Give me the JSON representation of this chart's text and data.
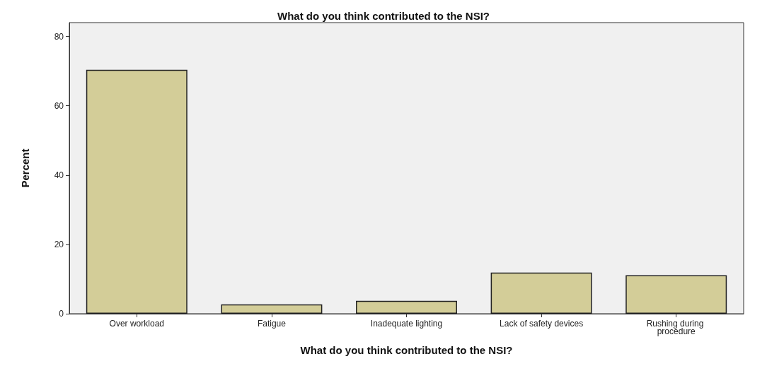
{
  "chart_data": {
    "type": "bar",
    "title": "What do you think contributed to the NSI?",
    "xlabel": "What do you think contributed to the NSI?",
    "ylabel": "Percent",
    "categories": [
      "Over workload",
      "Fatigue",
      "Inadequate lighting",
      "Lack of safety devices",
      "Rushing during procedure"
    ],
    "values": [
      70.4,
      2.7,
      3.7,
      11.9,
      11.1
    ],
    "color": "#d3cd98",
    "ylim": [
      0,
      84
    ],
    "yticks": [
      0,
      20,
      40,
      60,
      80
    ],
    "grid": false
  }
}
